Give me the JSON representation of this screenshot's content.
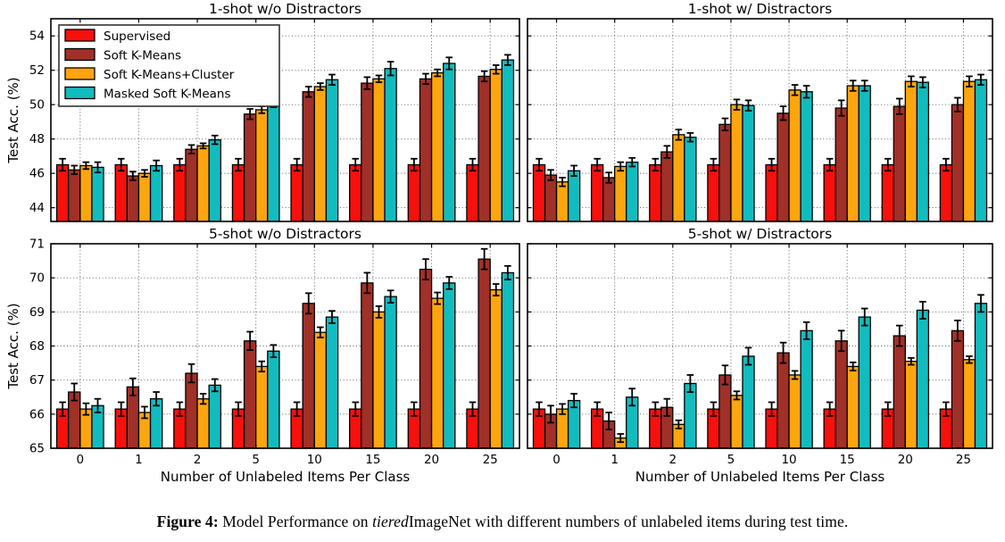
{
  "figure": {
    "caption": {
      "label": "Figure 4:",
      "before_italic": " Model Performance on ",
      "italic": "tiered",
      "after_italic": "ImageNet with different numbers of unlabeled items during test time."
    }
  },
  "axes": {
    "xlabel": "Number of Unlabeled Items Per Class",
    "ylabel": "Test Acc. (%)"
  },
  "legend": {
    "entries": [
      "Supervised",
      "Soft K-Means",
      "Soft K-Means+Cluster",
      "Masked Soft K-Means"
    ]
  },
  "colors": {
    "supervised": "#f7100c",
    "soft_kmeans": "#a03028",
    "soft_kmeans_cluster": "#fda50f",
    "masked_soft_kmeans": "#12bcbe"
  },
  "chart_data": [
    {
      "type": "bar",
      "position": "top-left",
      "title": "1-shot w/o Distractors",
      "categories": [
        "0",
        "1",
        "2",
        "5",
        "10",
        "15",
        "20",
        "25"
      ],
      "xlabel": "",
      "ylabel": "Test Acc. (%)",
      "ylim": [
        43.2,
        55.0
      ],
      "yticks": [
        44,
        46,
        48,
        50,
        52,
        54
      ],
      "grid": true,
      "legend_position": "upper-left",
      "show_y_tick_labels": true,
      "show_x_tick_labels": false,
      "show_legend": true,
      "series": [
        {
          "name": "Supervised",
          "color": "#f7100c",
          "values": [
            46.5,
            46.5,
            46.5,
            46.5,
            46.5,
            46.5,
            46.5,
            46.5
          ],
          "errors": [
            0.35,
            0.35,
            0.35,
            0.35,
            0.35,
            0.35,
            0.35,
            0.35
          ]
        },
        {
          "name": "Soft K-Means",
          "color": "#a03028",
          "values": [
            46.2,
            45.85,
            47.4,
            49.45,
            50.75,
            51.25,
            51.5,
            51.65
          ],
          "errors": [
            0.25,
            0.25,
            0.25,
            0.3,
            0.3,
            0.35,
            0.3,
            0.3
          ]
        },
        {
          "name": "Soft K-Means+Cluster",
          "color": "#fda50f",
          "values": [
            46.45,
            46.0,
            47.6,
            49.7,
            51.05,
            51.5,
            51.85,
            52.05
          ],
          "errors": [
            0.2,
            0.2,
            0.15,
            0.2,
            0.2,
            0.2,
            0.2,
            0.25
          ]
        },
        {
          "name": "Masked Soft K-Means",
          "color": "#12bcbe",
          "values": [
            46.35,
            46.45,
            47.95,
            50.2,
            51.45,
            52.1,
            52.4,
            52.6
          ],
          "errors": [
            0.3,
            0.3,
            0.25,
            0.35,
            0.3,
            0.4,
            0.35,
            0.3
          ]
        }
      ]
    },
    {
      "type": "bar",
      "position": "top-right",
      "title": "1-shot w/ Distractors",
      "categories": [
        "0",
        "1",
        "2",
        "5",
        "10",
        "15",
        "20",
        "25"
      ],
      "xlabel": "",
      "ylabel": "",
      "ylim": [
        43.2,
        55.0
      ],
      "yticks": [
        44,
        46,
        48,
        50,
        52,
        54
      ],
      "grid": true,
      "show_y_tick_labels": false,
      "show_x_tick_labels": false,
      "show_legend": false,
      "series": [
        {
          "name": "Supervised",
          "color": "#f7100c",
          "values": [
            46.5,
            46.5,
            46.5,
            46.5,
            46.5,
            46.5,
            46.5,
            46.5
          ],
          "errors": [
            0.35,
            0.35,
            0.35,
            0.35,
            0.35,
            0.35,
            0.35,
            0.35
          ]
        },
        {
          "name": "Soft K-Means",
          "color": "#a03028",
          "values": [
            45.9,
            45.75,
            47.25,
            48.85,
            49.5,
            49.8,
            49.9,
            50.0
          ],
          "errors": [
            0.3,
            0.3,
            0.35,
            0.35,
            0.4,
            0.45,
            0.45,
            0.4
          ]
        },
        {
          "name": "Soft K-Means+Cluster",
          "color": "#fda50f",
          "values": [
            45.5,
            46.4,
            48.25,
            50.0,
            50.85,
            51.1,
            51.35,
            51.35
          ],
          "errors": [
            0.25,
            0.25,
            0.3,
            0.3,
            0.3,
            0.3,
            0.3,
            0.3
          ]
        },
        {
          "name": "Masked Soft K-Means",
          "color": "#12bcbe",
          "values": [
            46.15,
            46.65,
            48.1,
            49.95,
            50.75,
            51.1,
            51.3,
            51.45
          ],
          "errors": [
            0.3,
            0.25,
            0.25,
            0.3,
            0.35,
            0.3,
            0.3,
            0.3
          ]
        }
      ]
    },
    {
      "type": "bar",
      "position": "bottom-left",
      "title": "5-shot w/o Distractors",
      "categories": [
        "0",
        "1",
        "2",
        "5",
        "10",
        "15",
        "20",
        "25"
      ],
      "xlabel": "Number of Unlabeled Items Per Class",
      "ylabel": "Test Acc. (%)",
      "ylim": [
        65,
        71
      ],
      "yticks": [
        65,
        66,
        67,
        68,
        69,
        70,
        71
      ],
      "grid": true,
      "show_y_tick_labels": true,
      "show_x_tick_labels": true,
      "show_legend": false,
      "series": [
        {
          "name": "Supervised",
          "color": "#f7100c",
          "values": [
            66.15,
            66.15,
            66.15,
            66.15,
            66.15,
            66.15,
            66.15,
            66.15
          ],
          "errors": [
            0.2,
            0.2,
            0.2,
            0.2,
            0.2,
            0.2,
            0.2,
            0.2
          ]
        },
        {
          "name": "Soft K-Means",
          "color": "#a03028",
          "values": [
            66.65,
            66.8,
            67.2,
            68.15,
            69.25,
            69.85,
            70.25,
            70.55
          ],
          "errors": [
            0.25,
            0.25,
            0.27,
            0.27,
            0.3,
            0.3,
            0.3,
            0.3
          ]
        },
        {
          "name": "Soft K-Means+Cluster",
          "color": "#fda50f",
          "values": [
            66.15,
            66.05,
            66.45,
            67.4,
            68.4,
            69.0,
            69.4,
            69.65
          ],
          "errors": [
            0.17,
            0.17,
            0.15,
            0.15,
            0.15,
            0.17,
            0.17,
            0.17
          ]
        },
        {
          "name": "Masked Soft K-Means",
          "color": "#12bcbe",
          "values": [
            66.25,
            66.45,
            66.85,
            67.85,
            68.85,
            69.45,
            69.85,
            70.15
          ],
          "errors": [
            0.2,
            0.2,
            0.18,
            0.18,
            0.18,
            0.18,
            0.18,
            0.2
          ]
        }
      ]
    },
    {
      "type": "bar",
      "position": "bottom-right",
      "title": "5-shot w/ Distractors",
      "categories": [
        "0",
        "1",
        "2",
        "5",
        "10",
        "15",
        "20",
        "25"
      ],
      "xlabel": "Number of Unlabeled Items Per Class",
      "ylabel": "",
      "ylim": [
        65,
        71
      ],
      "yticks": [
        65,
        66,
        67,
        68,
        69,
        70,
        71
      ],
      "grid": true,
      "show_y_tick_labels": false,
      "show_x_tick_labels": true,
      "show_legend": false,
      "series": [
        {
          "name": "Supervised",
          "color": "#f7100c",
          "values": [
            66.15,
            66.15,
            66.15,
            66.15,
            66.15,
            66.15,
            66.15,
            66.15
          ],
          "errors": [
            0.2,
            0.2,
            0.2,
            0.2,
            0.2,
            0.2,
            0.2,
            0.2
          ]
        },
        {
          "name": "Soft K-Means",
          "color": "#a03028",
          "values": [
            66.0,
            65.8,
            66.2,
            67.15,
            67.8,
            68.15,
            68.3,
            68.45
          ],
          "errors": [
            0.25,
            0.25,
            0.25,
            0.28,
            0.3,
            0.3,
            0.3,
            0.3
          ]
        },
        {
          "name": "Soft K-Means+Cluster",
          "color": "#fda50f",
          "values": [
            66.15,
            65.3,
            65.7,
            66.55,
            67.15,
            67.4,
            67.55,
            67.6
          ],
          "errors": [
            0.15,
            0.12,
            0.12,
            0.12,
            0.12,
            0.12,
            0.1,
            0.1
          ]
        },
        {
          "name": "Masked Soft K-Means",
          "color": "#12bcbe",
          "values": [
            66.4,
            66.5,
            66.9,
            67.7,
            68.45,
            68.85,
            69.05,
            69.25
          ],
          "errors": [
            0.2,
            0.25,
            0.25,
            0.25,
            0.25,
            0.25,
            0.25,
            0.25
          ]
        }
      ]
    }
  ]
}
